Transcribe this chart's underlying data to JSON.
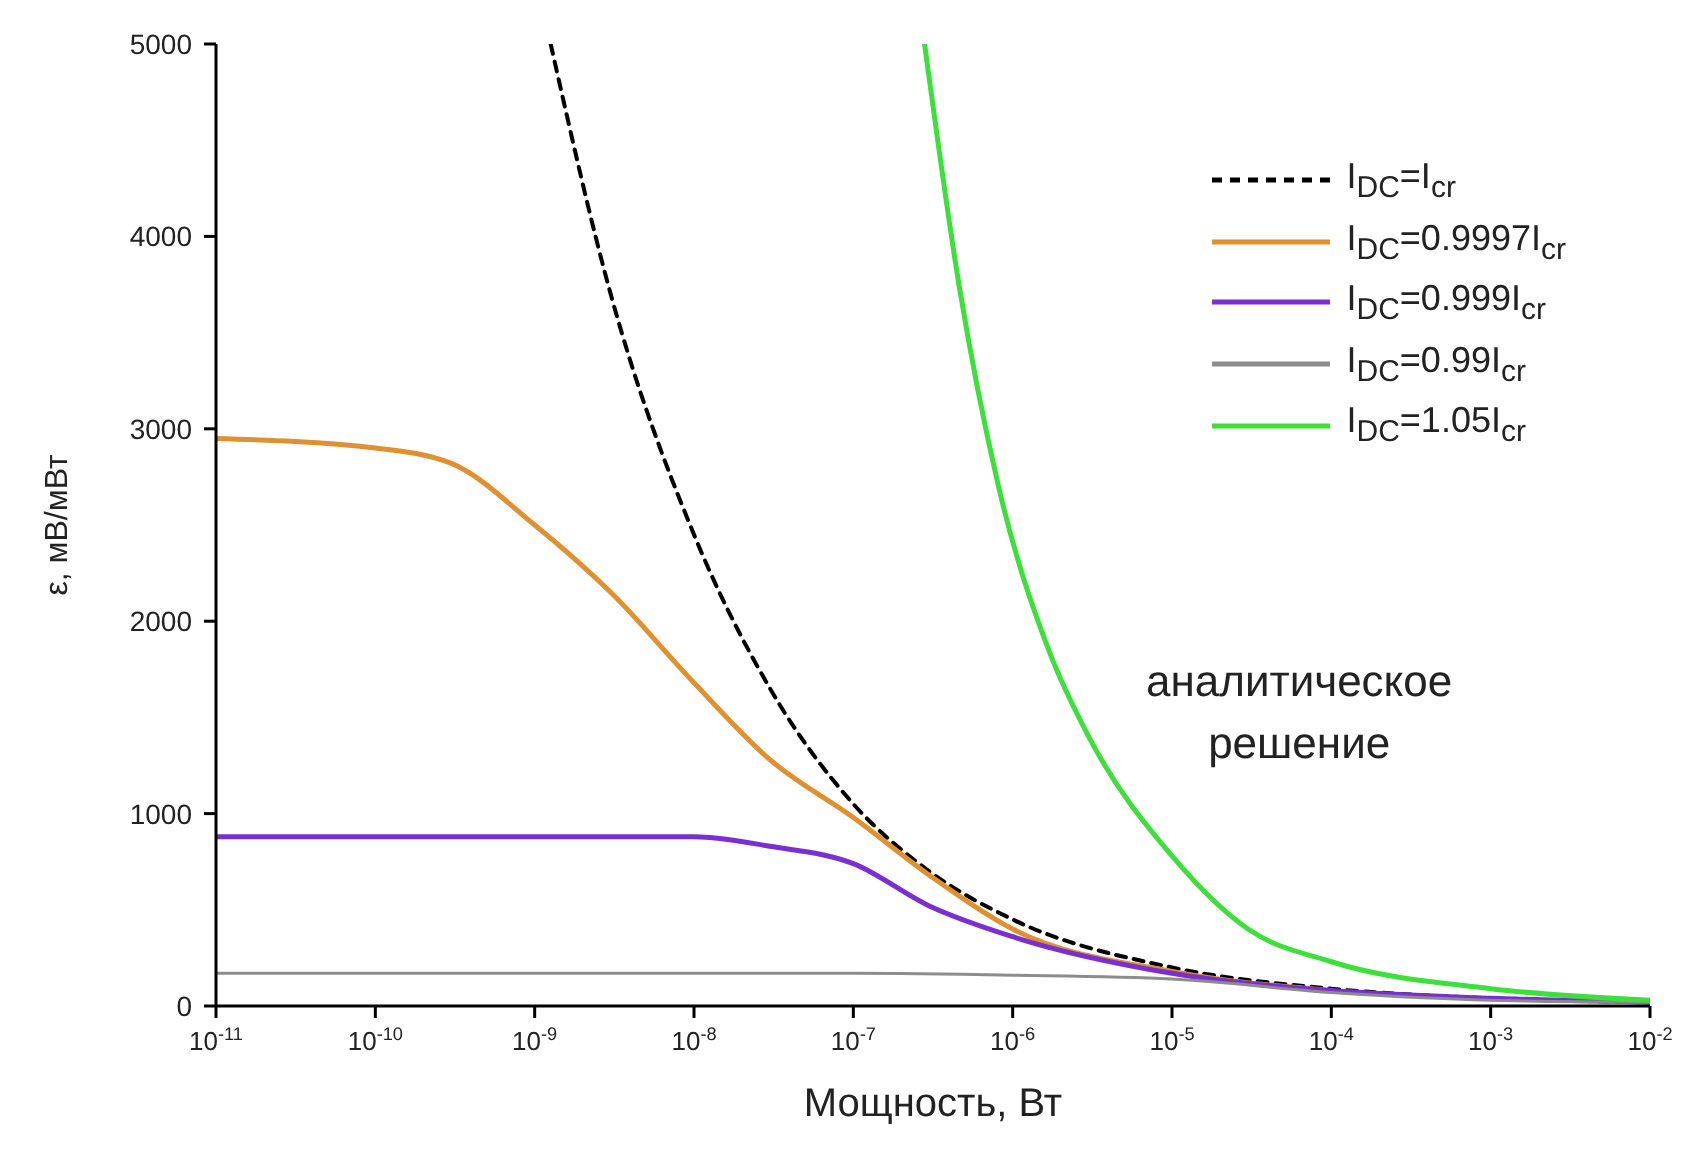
{
  "chart_data": {
    "type": "line",
    "xlabel": "Мощность, Вт",
    "ylabel": "ε, мВ/мВт",
    "log": "x",
    "legend": "top right",
    "marker": "none",
    "xlim": [
      1e-11,
      0.01
    ],
    "ylim": [
      0,
      5000
    ],
    "xticks": [
      {
        "value": 1e-11,
        "label": "10$^{-11}$"
      },
      {
        "value": 1e-10,
        "label": "10$^{-10}$"
      },
      {
        "value": 1e-09,
        "label": "10$^{-9}$"
      },
      {
        "value": 1e-08,
        "label": "10$^{-8}$"
      },
      {
        "value": 1e-07,
        "label": "10$^{-7}$"
      },
      {
        "value": 1e-06,
        "label": "10$^{-6}$"
      },
      {
        "value": 1e-05,
        "label": "10$^{-5}$"
      },
      {
        "value": 0.0001,
        "label": "10$^{-4}$"
      },
      {
        "value": 0.001,
        "label": "10$^{-3}$"
      },
      {
        "value": 0.01,
        "label": "10$^{-2}$"
      }
    ],
    "yticks": [
      0,
      1000,
      2000,
      3000,
      4000,
      5000
    ],
    "annotations": [
      "аналитическое\nрешение"
    ],
    "series": [
      {
        "name": "I$_{DC}$=I$_{cr}$",
        "color": "#000000",
        "line_style": "dashed",
        "x": [
          1.26e-09,
          3e-09,
          1e-08,
          3e-08,
          1e-07,
          3e-07,
          1e-06,
          1e-05,
          0.0001,
          0.001,
          0.01
        ],
        "values": [
          5000,
          3700,
          2450,
          1650,
          1050,
          700,
          450,
          200,
          90,
          40,
          20
        ]
      },
      {
        "name": "I$_{DC}$=0.9997I$_{cr}$",
        "color": "#e0912f",
        "line_style": "solid",
        "x": [
          1e-11,
          1e-10,
          3e-10,
          1e-09,
          3e-09,
          1e-08,
          3e-08,
          1e-07,
          3e-07,
          1e-06,
          1e-05,
          0.0001
        ],
        "values": [
          2950,
          2900,
          2820,
          2500,
          2150,
          1680,
          1280,
          980,
          680,
          400,
          180,
          80
        ]
      },
      {
        "name": "I$_{DC}$=0.999I$_{cr}$",
        "color": "#7b2fd0",
        "line_style": "solid",
        "x": [
          1e-11,
          1e-10,
          1e-09,
          1e-08,
          3e-08,
          1e-07,
          3e-07,
          1e-06,
          1e-05,
          0.0001,
          0.001,
          0.01
        ],
        "values": [
          880,
          880,
          880,
          880,
          830,
          740,
          520,
          360,
          170,
          80,
          40,
          20
        ]
      },
      {
        "name": "I$_{DC}$=0.99I$_{cr}$",
        "color": "#8c8c8c",
        "line_style": "solid",
        "x": [
          1e-11,
          1e-09,
          1e-07,
          1e-06,
          1e-05,
          0.0001,
          0.001,
          0.01
        ],
        "values": [
          170,
          170,
          170,
          160,
          140,
          70,
          30,
          20
        ]
      },
      {
        "name": "I$_{DC}$=1.05I$_{cr}$",
        "color": "#3de03a",
        "line_style": "solid",
        "x": [
          2.8e-07,
          4.6e-07,
          8.1e-07,
          1.7e-06,
          3e-06,
          1e-05,
          3e-05,
          0.0001,
          0.001,
          0.01
        ],
        "values": [
          5000,
          3750,
          2710,
          1840,
          1400,
          780,
          400,
          230,
          90,
          30
        ]
      }
    ]
  }
}
